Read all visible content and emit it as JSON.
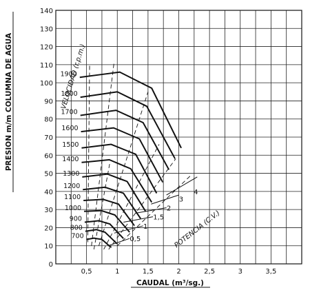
{
  "chart_data": {
    "type": "line",
    "xlabel": "CAUDAL (m³/sg.)",
    "ylabel": "PRESION m/m COLUMNA DE AGUA",
    "xlim": [
      0,
      4
    ],
    "ylim": [
      0,
      140
    ],
    "x_ticks": [
      "0,5",
      "1",
      "1,5",
      "2",
      "2,5",
      "3",
      "3,5"
    ],
    "x_tick_values": [
      0.5,
      1,
      1.5,
      2,
      2.5,
      3,
      3.5
    ],
    "y_ticks": [
      "0",
      "10",
      "20",
      "30",
      "40",
      "50",
      "60",
      "70",
      "80",
      "90",
      "100",
      "110",
      "120",
      "130",
      "140"
    ],
    "y_tick_values": [
      0,
      10,
      20,
      30,
      40,
      50,
      60,
      70,
      80,
      90,
      100,
      110,
      120,
      130,
      140
    ],
    "grid": true,
    "series": [
      {
        "name": "700",
        "x": [
          0.5,
          0.62,
          0.75,
          0.9
        ],
        "y": [
          13.5,
          14.2,
          13.5,
          9
        ]
      },
      {
        "name": "800",
        "x": [
          0.48,
          0.66,
          0.8,
          1.0
        ],
        "y": [
          18,
          18.9,
          17.5,
          11
        ]
      },
      {
        "name": "900",
        "x": [
          0.47,
          0.7,
          0.88,
          1.1
        ],
        "y": [
          23,
          23.8,
          22,
          14
        ]
      },
      {
        "name": "1000",
        "x": [
          0.46,
          0.74,
          0.96,
          1.2
        ],
        "y": [
          29,
          29.4,
          27,
          17.5
        ]
      },
      {
        "name": "1100",
        "x": [
          0.45,
          0.77,
          1.02,
          1.28
        ],
        "y": [
          35,
          35.6,
          33,
          21
        ]
      },
      {
        "name": "1200",
        "x": [
          0.44,
          0.8,
          1.1,
          1.38
        ],
        "y": [
          41,
          42.3,
          39,
          25
        ]
      },
      {
        "name": "1300",
        "x": [
          0.43,
          0.84,
          1.16,
          1.46
        ],
        "y": [
          48,
          49.6,
          45.5,
          29
        ]
      },
      {
        "name": "1400",
        "x": [
          0.42,
          0.87,
          1.22,
          1.56
        ],
        "y": [
          56,
          57.5,
          52.5,
          34
        ]
      },
      {
        "name": "1500",
        "x": [
          0.42,
          0.9,
          1.3,
          1.64
        ],
        "y": [
          64,
          66,
          60.5,
          39
        ]
      },
      {
        "name": "1600",
        "x": [
          0.41,
          0.94,
          1.36,
          1.74
        ],
        "y": [
          73,
          75.1,
          69,
          45
        ]
      },
      {
        "name": "1700",
        "x": [
          0.4,
          0.98,
          1.42,
          1.84
        ],
        "y": [
          82,
          84.8,
          78,
          52
        ]
      },
      {
        "name": "1800",
        "x": [
          0.4,
          1.0,
          1.48,
          1.94
        ],
        "y": [
          92,
          95,
          87,
          58
        ]
      },
      {
        "name": "1900",
        "x": [
          0.39,
          1.04,
          1.56,
          2.04
        ],
        "y": [
          103,
          105.9,
          97,
          64
        ]
      }
    ],
    "velocity_axis_label": "VELOCIDAD (r.p.m.)",
    "power_axis_label": "POTENCIA (C.V.)",
    "power_labels": [
      "0,5",
      "1",
      "1,5",
      "2",
      "3",
      "4"
    ]
  }
}
